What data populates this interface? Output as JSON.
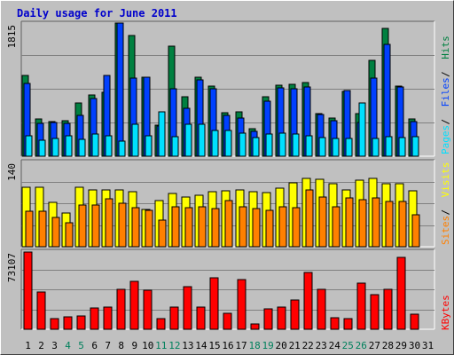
{
  "title": "Daily usage for June 2011",
  "colors": {
    "hits": "#008040",
    "files": "#0040ff",
    "pages": "#00e0ff",
    "visits": "#ffff00",
    "sites": "#ff8000",
    "kbytes": "#ff0000",
    "weekend_day": "#00805c",
    "weekday": "#000000",
    "background": "#c0c0c0"
  },
  "chart_data": [
    {
      "type": "bar",
      "panel": "hits-files-pages",
      "ymax_label": "1815",
      "ylim": [
        0,
        1815
      ],
      "legend": [
        "Pages",
        "Files",
        "Hits"
      ],
      "legend_placement": "right, vertical",
      "categories": [
        "1",
        "2",
        "3",
        "4",
        "5",
        "6",
        "7",
        "8",
        "9",
        "10",
        "11",
        "12",
        "13",
        "14",
        "15",
        "16",
        "17",
        "18",
        "19",
        "20",
        "21",
        "22",
        "23",
        "24",
        "25",
        "26",
        "27",
        "28",
        "29",
        "30",
        "31"
      ],
      "weekend_days": [
        4,
        5,
        11,
        12,
        18,
        19,
        25,
        26
      ],
      "series": [
        {
          "name": "Hits",
          "values": [
            1100,
            510,
            470,
            490,
            730,
            830,
            870,
            1815,
            1650,
            1080,
            420,
            1500,
            810,
            1080,
            960,
            590,
            600,
            370,
            810,
            970,
            980,
            1000,
            580,
            520,
            880,
            580,
            1310,
            1740,
            950,
            510,
            0
          ]
        },
        {
          "name": "Files",
          "values": [
            990,
            450,
            460,
            450,
            560,
            790,
            1100,
            1850,
            1070,
            1080,
            410,
            920,
            650,
            1040,
            920,
            560,
            520,
            340,
            750,
            930,
            920,
            940,
            570,
            480,
            890,
            460,
            1070,
            1530,
            940,
            470,
            0
          ]
        },
        {
          "name": "Pages",
          "values": [
            280,
            220,
            240,
            280,
            230,
            300,
            280,
            210,
            440,
            280,
            600,
            270,
            440,
            440,
            350,
            350,
            320,
            260,
            300,
            310,
            300,
            280,
            260,
            240,
            240,
            720,
            240,
            270,
            250,
            270,
            0
          ]
        }
      ]
    },
    {
      "type": "bar",
      "panel": "visits-sites",
      "ymax_label": "140",
      "ylim": [
        0,
        140
      ],
      "legend": [
        "Sites",
        "Visits"
      ],
      "legend_placement": "right, vertical",
      "categories": [
        "1",
        "2",
        "3",
        "4",
        "5",
        "6",
        "7",
        "8",
        "9",
        "10",
        "11",
        "12",
        "13",
        "14",
        "15",
        "16",
        "17",
        "18",
        "19",
        "20",
        "21",
        "22",
        "23",
        "24",
        "25",
        "26",
        "27",
        "28",
        "29",
        "30",
        "31"
      ],
      "series": [
        {
          "name": "Visits",
          "values": [
            97,
            98,
            73,
            56,
            97,
            94,
            93,
            93,
            90,
            61,
            76,
            88,
            81,
            84,
            91,
            92,
            93,
            90,
            89,
            96,
            105,
            112,
            111,
            104,
            93,
            109,
            113,
            104,
            103,
            92,
            0
          ]
        },
        {
          "name": "Sites",
          "values": [
            58,
            58,
            48,
            40,
            68,
            68,
            79,
            71,
            64,
            60,
            44,
            65,
            64,
            65,
            62,
            76,
            66,
            63,
            60,
            66,
            64,
            93,
            82,
            66,
            80,
            78,
            80,
            75,
            74,
            52,
            0
          ]
        }
      ]
    },
    {
      "type": "bar",
      "panel": "kbytes",
      "ymax_label": "73107",
      "ylim": [
        0,
        73107
      ],
      "legend": [
        "KBytes"
      ],
      "legend_placement": "right, vertical",
      "categories": [
        "1",
        "2",
        "3",
        "4",
        "5",
        "6",
        "7",
        "8",
        "9",
        "10",
        "11",
        "12",
        "13",
        "14",
        "15",
        "16",
        "17",
        "18",
        "19",
        "20",
        "21",
        "22",
        "23",
        "24",
        "25",
        "26",
        "27",
        "28",
        "29",
        "30",
        "31"
      ],
      "series": [
        {
          "name": "KBytes",
          "values": [
            73107,
            35000,
            10000,
            11500,
            13000,
            20000,
            21000,
            38000,
            45000,
            37000,
            10000,
            21000,
            40000,
            21000,
            49000,
            15500,
            47000,
            5000,
            19000,
            21000,
            28000,
            54000,
            38000,
            11000,
            10500,
            44000,
            33000,
            38000,
            68000,
            14000,
            0
          ]
        }
      ]
    }
  ]
}
